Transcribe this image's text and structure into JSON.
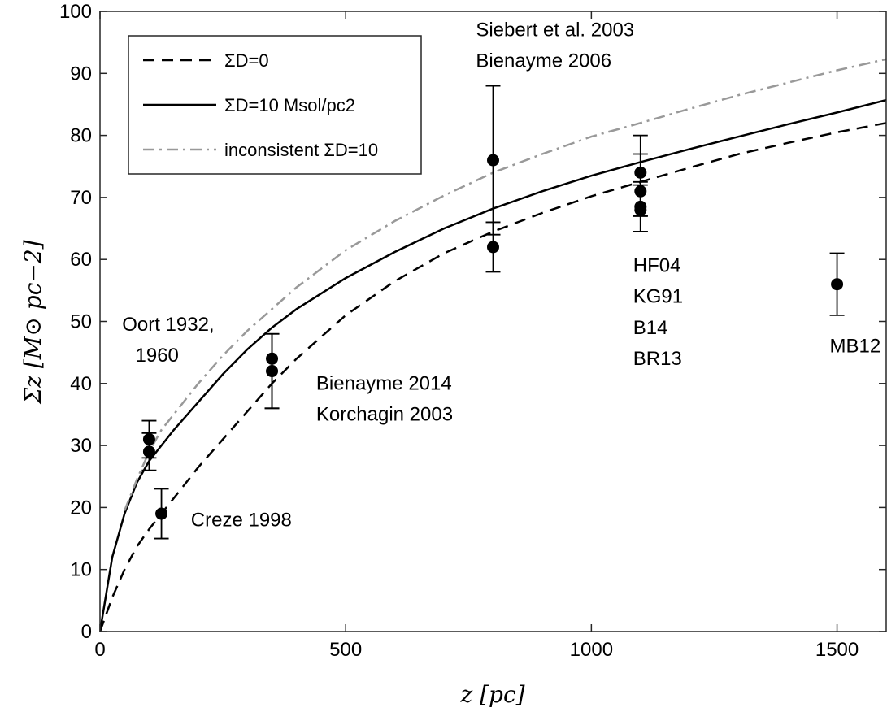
{
  "chart_data": {
    "type": "line",
    "xlabel": "z [pc]",
    "ylabel": "Σz [M⊙ pc−2]",
    "xlim": [
      0,
      1600
    ],
    "ylim": [
      0,
      100
    ],
    "x_ticks": [
      0,
      500,
      1000,
      1500
    ],
    "y_ticks": [
      0,
      10,
      20,
      30,
      40,
      50,
      60,
      70,
      80,
      90,
      100
    ],
    "grid": false,
    "legend_placement": "top-left",
    "series": [
      {
        "name": "ΣD=0",
        "style": "dashed",
        "color": "#000000",
        "x": [
          0,
          25,
          50,
          75,
          100,
          125,
          150,
          200,
          250,
          300,
          350,
          400,
          500,
          600,
          700,
          800,
          900,
          1000,
          1100,
          1200,
          1300,
          1400,
          1500,
          1600
        ],
        "y": [
          0,
          5.5,
          10,
          13.7,
          16.5,
          19,
          21.5,
          26.5,
          31,
          35.5,
          40,
          44,
          51,
          56.5,
          61,
          64.5,
          67.5,
          70.2,
          72.5,
          74.8,
          77,
          78.8,
          80.5,
          82
        ]
      },
      {
        "name": "ΣD=10 Msol/pc2",
        "style": "solid",
        "color": "#000000",
        "x": [
          0,
          25,
          50,
          75,
          100,
          125,
          150,
          200,
          250,
          300,
          350,
          400,
          500,
          600,
          700,
          800,
          900,
          1000,
          1100,
          1200,
          1300,
          1400,
          1500,
          1600
        ],
        "y": [
          0,
          12,
          19,
          24,
          27.5,
          30,
          32.5,
          37,
          41.5,
          45.5,
          49,
          52,
          57,
          61.2,
          65,
          68.2,
          71,
          73.5,
          75.7,
          77.8,
          79.8,
          81.8,
          83.7,
          85.7
        ]
      },
      {
        "name": "inconsistent ΣD=10",
        "style": "dashdot",
        "color": "#999999",
        "x": [
          50,
          75,
          100,
          125,
          150,
          200,
          250,
          300,
          350,
          400,
          500,
          600,
          700,
          800,
          900,
          1000,
          1100,
          1200,
          1300,
          1400,
          1500,
          1600
        ],
        "y": [
          19.5,
          24.5,
          29,
          32.5,
          35,
          40,
          44.5,
          48.5,
          52,
          55.5,
          61.5,
          66.2,
          70.3,
          74,
          77,
          79.8,
          82,
          84.3,
          86.5,
          88.5,
          90.5,
          92.3
        ]
      }
    ],
    "points": [
      {
        "x": 100,
        "y": 31,
        "err_low": 3,
        "err_high": 3
      },
      {
        "x": 100,
        "y": 29,
        "err_low": 3,
        "err_high": 3
      },
      {
        "x": 125,
        "y": 19,
        "err_low": 4,
        "err_high": 4
      },
      {
        "x": 350,
        "y": 44,
        "err_low": 8,
        "err_high": 4
      },
      {
        "x": 350,
        "y": 42,
        "err_low": 6,
        "err_high": 6
      },
      {
        "x": 800,
        "y": 76,
        "err_low": 12,
        "err_high": 12
      },
      {
        "x": 800,
        "y": 62,
        "err_low": 4,
        "err_high": 4
      },
      {
        "x": 1100,
        "y": 74,
        "err_low": 7,
        "err_high": 6
      },
      {
        "x": 1100,
        "y": 71,
        "err_low": 4,
        "err_high": 6
      },
      {
        "x": 1100,
        "y": 68.5,
        "err_low": 4,
        "err_high": 4
      },
      {
        "x": 1100,
        "y": 68,
        "err_low": 3.5,
        "err_high": 4
      },
      {
        "x": 1500,
        "y": 56,
        "err_low": 5,
        "err_high": 5
      }
    ],
    "annotations": [
      {
        "text": "Oort 1932,",
        "x": 45,
        "y": 48.5
      },
      {
        "text": "1960",
        "x": 72,
        "y": 43.5
      },
      {
        "text": "Creze 1998",
        "x": 185,
        "y": 17
      },
      {
        "text": "Bienayme 2014",
        "x": 440,
        "y": 39
      },
      {
        "text": "Korchagin 2003",
        "x": 440,
        "y": 34
      },
      {
        "text": "Siebert et al. 2003",
        "x": 765,
        "y": 96
      },
      {
        "text": "Bienayme 2006",
        "x": 765,
        "y": 91
      },
      {
        "text": "HF04",
        "x": 1085,
        "y": 58
      },
      {
        "text": "KG91",
        "x": 1085,
        "y": 53
      },
      {
        "text": "B14",
        "x": 1085,
        "y": 48
      },
      {
        "text": "BR13",
        "x": 1085,
        "y": 43
      },
      {
        "text": "MB12",
        "x": 1485,
        "y": 45
      }
    ]
  }
}
